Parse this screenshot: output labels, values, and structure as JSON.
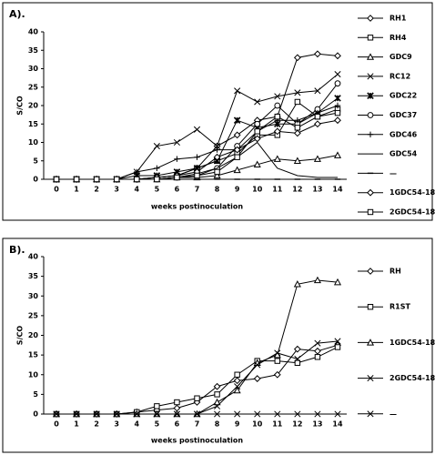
{
  "chart_data": [
    {
      "type": "line",
      "title": "A).",
      "y_label": "S/CO",
      "x_label": "weeks postinoculation",
      "categories": [
        0,
        1,
        2,
        3,
        4,
        5,
        6,
        7,
        8,
        9,
        10,
        11,
        12,
        13,
        14
      ],
      "ylim": [
        0,
        40
      ],
      "yticks": [
        0,
        5,
        10,
        15,
        20,
        25,
        30,
        35,
        40
      ],
      "grid": false,
      "legend": "right",
      "series": [
        {
          "name": "RH1",
          "color": "#000000",
          "marker": "diamond",
          "values": [
            0,
            0,
            0,
            0,
            0,
            0.5,
            1,
            3,
            9,
            12,
            16,
            17,
            33,
            34,
            33.5
          ]
        },
        {
          "name": "RH4",
          "color": "#000000",
          "marker": "square",
          "values": [
            0,
            0,
            0,
            0,
            0,
            0.5,
            1,
            3,
            5,
            7,
            12,
            12,
            21,
            17,
            19
          ]
        },
        {
          "name": "GDC9",
          "color": "#000000",
          "marker": "triangle",
          "values": [
            0,
            0,
            0,
            0,
            0,
            0,
            0.5,
            0.5,
            1,
            2.5,
            4,
            5.5,
            5,
            5.5,
            6.5
          ]
        },
        {
          "name": "RC12",
          "color": "#000000",
          "marker": "x",
          "values": [
            0,
            0,
            0,
            0,
            2,
            9,
            10,
            13.5,
            9,
            24,
            21,
            22.5,
            23.5,
            24,
            28.5
          ]
        },
        {
          "name": "GDC22",
          "color": "#000000",
          "marker": "star",
          "values": [
            0,
            0,
            0,
            0,
            1,
            1,
            2,
            3,
            5,
            16,
            14,
            15,
            15,
            18,
            22
          ]
        },
        {
          "name": "GDC37",
          "color": "#000000",
          "marker": "circle",
          "values": [
            0,
            0,
            0,
            0,
            0,
            0,
            0.5,
            1.5,
            3,
            9,
            15,
            20,
            15,
            19,
            26
          ]
        },
        {
          "name": "GDC46",
          "color": "#000000",
          "marker": "plus",
          "values": [
            0,
            0,
            0,
            0,
            2,
            3,
            5.5,
            6,
            8,
            8,
            13,
            16,
            16,
            18,
            20
          ]
        },
        {
          "name": "GDC54",
          "color": "#000000",
          "marker": "none",
          "values": [
            0,
            0,
            0,
            0,
            0,
            0,
            0.5,
            1,
            3,
            6,
            10,
            3,
            1,
            0.5,
            0.5
          ]
        },
        {
          "name": "—",
          "color": "#000000",
          "marker": "dash",
          "values": [
            0,
            0,
            0,
            0,
            0,
            0,
            0,
            0,
            0,
            0,
            0,
            0,
            0,
            0,
            0
          ]
        },
        {
          "name": "1GDC54-18",
          "color": "#000000",
          "marker": "diamond",
          "values": [
            0,
            0,
            0,
            0,
            0,
            0.5,
            1,
            2,
            6,
            8,
            11,
            13,
            12.5,
            15,
            16
          ]
        },
        {
          "name": "2GDC54-18",
          "color": "#000000",
          "marker": "square",
          "values": [
            0,
            0,
            0,
            0,
            0,
            0,
            0.5,
            1,
            2,
            6,
            13,
            17,
            14,
            17,
            18
          ]
        }
      ]
    },
    {
      "type": "line",
      "title": "B).",
      "y_label": "S/CO",
      "x_label": "weeks postinoculation",
      "categories": [
        0,
        1,
        2,
        3,
        4,
        5,
        6,
        7,
        8,
        9,
        10,
        11,
        12,
        13,
        14
      ],
      "ylim": [
        0,
        40
      ],
      "yticks": [
        0,
        5,
        10,
        15,
        20,
        25,
        30,
        35,
        40
      ],
      "grid": false,
      "legend": "right",
      "series": [
        {
          "name": "RH",
          "color": "#000000",
          "marker": "diamond",
          "values": [
            0,
            0,
            0,
            0,
            0.5,
            1,
            1.5,
            3,
            7,
            8.5,
            9,
            10,
            16.5,
            16,
            17.5
          ]
        },
        {
          "name": "R1ST",
          "color": "#000000",
          "marker": "square",
          "values": [
            0,
            0,
            0,
            0,
            0.5,
            2,
            3,
            4,
            5,
            10,
            13.5,
            13.5,
            13,
            14.5,
            17
          ]
        },
        {
          "name": "1GDC54-18",
          "color": "#000000",
          "marker": "triangle",
          "values": [
            0,
            0,
            0,
            0,
            0,
            0,
            0,
            0,
            3,
            6,
            13,
            15,
            33,
            34,
            33.5
          ]
        },
        {
          "name": "2GDC54-18",
          "color": "#000000",
          "marker": "x",
          "values": [
            0,
            0,
            0,
            0,
            0,
            0,
            0,
            0,
            2,
            7,
            12.5,
            15.5,
            14,
            18,
            18.5
          ]
        },
        {
          "name": "—",
          "color": "#000000",
          "marker": "x",
          "values": [
            0,
            0,
            0,
            0,
            0,
            0,
            0,
            0,
            0,
            0,
            0,
            0,
            0,
            0,
            0
          ]
        }
      ]
    }
  ]
}
